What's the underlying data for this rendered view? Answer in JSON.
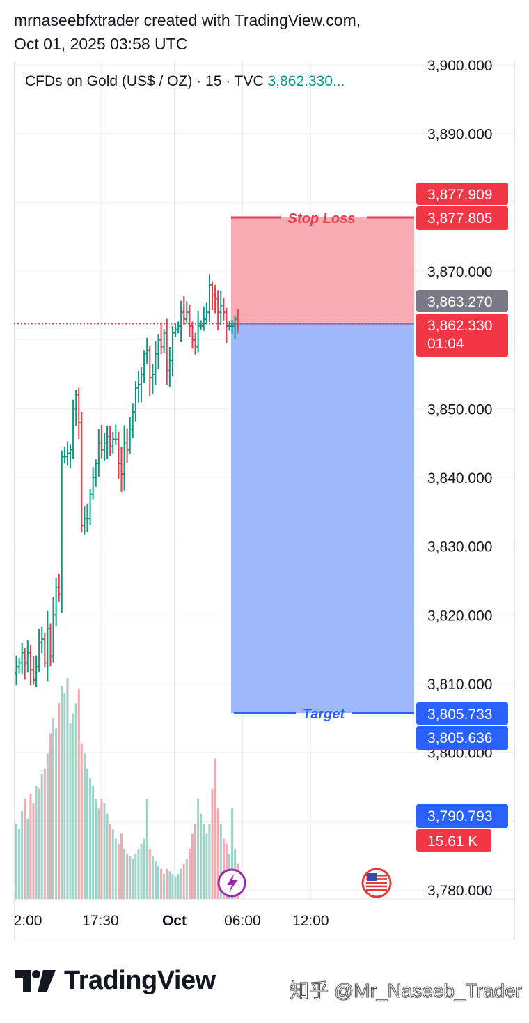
{
  "header": {
    "line1": "mrnaseebfxtrader created with TradingView.com,",
    "line2": "Oct 01, 2025 03:58 UTC"
  },
  "symbol": {
    "label": "CFDs on Gold (US$ / OZ) · 15 · TVC",
    "price": "3,862.330..."
  },
  "colors": {
    "up": "#089981",
    "down": "#f23645",
    "stop_zone": "#f7a7ae",
    "target_zone": "#9ab4fc",
    "stop_line": "#e0404f",
    "target_line": "#2962ff",
    "gray_tag": "#787b86",
    "blue_tag": "#2962ff"
  },
  "chart_data": {
    "type": "candlestick",
    "ylim": [
      3777.5,
      3900.0
    ],
    "y_ticks": [
      "3,900.000",
      "3,890.000",
      "3,870.000",
      "3,850.000",
      "3,840.000",
      "3,830.000",
      "3,820.000",
      "3,810.000",
      "3,800.000",
      "3,780.000"
    ],
    "y_tick_values": [
      3900,
      3890,
      3870,
      3850,
      3840,
      3830,
      3820,
      3810,
      3800,
      3780
    ],
    "x_ticks": [
      {
        "label": "2:00",
        "bar": 0
      },
      {
        "label": "17:30",
        "bar": 30
      },
      {
        "label": "Oct",
        "bar": 56
      },
      {
        "label": "06:00",
        "bar": 80
      },
      {
        "label": "12:00",
        "bar": 104
      }
    ],
    "bars_visible": 122,
    "close_path": [
      3812.5,
      3813,
      3814.5,
      3813,
      3814.5,
      3812,
      3810.5,
      3812.5,
      3816,
      3816.5,
      3813,
      3818,
      3814,
      3820,
      3824,
      3823,
      3843,
      3843,
      3843.5,
      3844,
      3850,
      3852,
      3848,
      3833,
      3834,
      3834,
      3837.5,
      3840,
      3842,
      3845,
      3844,
      3845,
      3846,
      3844.5,
      3845.5,
      3845.5,
      3842,
      3840.5,
      3845,
      3844,
      3847,
      3849.5,
      3853,
      3853.5,
      3855,
      3858,
      3858.5,
      3854.5,
      3855,
      3858,
      3860,
      3859,
      3861,
      3855.5,
      3857,
      3861,
      3861.5,
      3862,
      3864,
      3863,
      3864,
      3862,
      3860,
      3859,
      3862,
      3862,
      3863,
      3864,
      3868,
      3866.5,
      3866,
      3864,
      3865,
      3864,
      3862,
      3862,
      3862,
      3863,
      3862.3
    ],
    "volume": [
      30,
      28,
      35,
      40,
      32,
      42,
      38,
      45,
      44,
      50,
      52,
      58,
      66,
      72,
      68,
      78,
      85,
      82,
      88,
      70,
      74,
      78,
      84,
      62,
      58,
      52,
      48,
      45,
      40,
      36,
      40,
      38,
      34,
      30,
      28,
      24,
      22,
      26,
      20,
      18,
      17,
      16,
      18,
      20,
      22,
      24,
      40,
      20,
      17,
      15,
      13,
      12,
      10,
      12,
      11,
      10,
      9,
      10,
      12,
      14,
      16,
      20,
      26,
      30,
      40,
      34,
      30,
      26,
      30,
      44,
      56,
      36,
      30,
      24,
      22,
      18,
      36,
      20,
      14
    ],
    "price_line": 3862.33,
    "position": {
      "stop_loss": 3877.805,
      "entry": 3862.33,
      "target": 3805.733,
      "stop_label": "Stop Loss",
      "target_label": "Target"
    },
    "price_tags": [
      {
        "label": "3,877.909",
        "value": 3877.909,
        "color": "#f23645"
      },
      {
        "label": "3,877.805",
        "value": 3877.805,
        "color": "#f23645"
      },
      {
        "label": "3,863.270",
        "value": 3863.27,
        "color": "#787b86"
      },
      {
        "label": "3,862.330",
        "sub": "01:04",
        "value": 3862.33,
        "color": "#f23645"
      },
      {
        "label": "3,805.733",
        "value": 3805.733,
        "color": "#2962ff"
      },
      {
        "label": "3,805.636",
        "value": 3805.636,
        "color": "#2962ff"
      },
      {
        "label": "3,790.793",
        "value": 3790.793,
        "color": "#2962ff"
      },
      {
        "label": "15.61 K",
        "value": 3787.5,
        "color": "#f23645"
      }
    ]
  },
  "footer": {
    "brand": "TradingView",
    "watermark": "知乎 @Mr_Naseeb_Trader"
  }
}
